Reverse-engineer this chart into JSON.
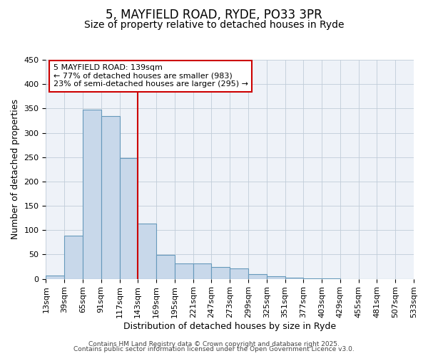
{
  "title": "5, MAYFIELD ROAD, RYDE, PO33 3PR",
  "subtitle": "Size of property relative to detached houses in Ryde",
  "xlabel": "Distribution of detached houses by size in Ryde",
  "ylabel": "Number of detached properties",
  "bar_values": [
    7,
    88,
    348,
    335,
    248,
    113,
    49,
    32,
    32,
    25,
    21,
    9,
    5,
    2,
    1,
    1,
    0,
    0,
    0,
    0
  ],
  "categories": [
    "13sqm",
    "39sqm",
    "65sqm",
    "91sqm",
    "117sqm",
    "143sqm",
    "169sqm",
    "195sqm",
    "221sqm",
    "247sqm",
    "273sqm",
    "299sqm",
    "325sqm",
    "351sqm",
    "377sqm",
    "403sqm",
    "429sqm",
    "455sqm",
    "481sqm",
    "507sqm",
    "533sqm"
  ],
  "bar_color": "#c8d8ea",
  "bar_edge_color": "#6699bb",
  "bar_width": 1.0,
  "vline_color": "#cc0000",
  "annotation_title": "5 MAYFIELD ROAD: 139sqm",
  "annotation_line1": "← 77% of detached houses are smaller (983)",
  "annotation_line2": "23% of semi-detached houses are larger (295) →",
  "annotation_box_color": "#cc0000",
  "ylim": [
    0,
    450
  ],
  "grid_color": "#c0ccd8",
  "background_color": "#eef2f8",
  "footer1": "Contains HM Land Registry data © Crown copyright and database right 2025.",
  "footer2": "Contains public sector information licensed under the Open Government Licence v3.0.",
  "title_fontsize": 12,
  "subtitle_fontsize": 10,
  "axis_label_fontsize": 9,
  "tick_fontsize": 8,
  "annotation_fontsize": 8,
  "footer_fontsize": 6.5
}
